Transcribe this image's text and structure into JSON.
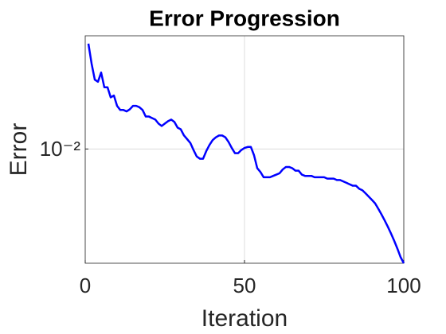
{
  "chart_data": {
    "type": "line",
    "title": "Error Progression",
    "x_label": "Iteration",
    "y_label": "Error",
    "x": [
      1,
      2,
      3,
      4,
      5,
      6,
      7,
      8,
      9,
      10,
      11,
      12,
      13,
      14,
      15,
      16,
      17,
      18,
      19,
      20,
      21,
      22,
      23,
      24,
      25,
      26,
      27,
      28,
      29,
      30,
      31,
      32,
      33,
      34,
      35,
      36,
      37,
      38,
      39,
      40,
      41,
      42,
      43,
      44,
      45,
      46,
      47,
      48,
      49,
      50,
      51,
      52,
      53,
      54,
      55,
      56,
      57,
      58,
      59,
      60,
      61,
      62,
      63,
      64,
      65,
      66,
      67,
      68,
      69,
      70,
      71,
      72,
      73,
      74,
      75,
      76,
      77,
      78,
      79,
      80,
      81,
      82,
      83,
      84,
      85,
      86,
      87,
      88,
      89,
      90,
      91,
      92,
      93,
      94,
      95,
      96,
      97,
      98,
      99,
      100
    ],
    "series": [
      {
        "name": "Error",
        "color": "#0000ff",
        "values": [
          0.0278,
          0.0229,
          0.0196,
          0.0192,
          0.021,
          0.0182,
          0.0182,
          0.0165,
          0.0168,
          0.0152,
          0.0146,
          0.0146,
          0.0144,
          0.0147,
          0.0152,
          0.0152,
          0.015,
          0.0146,
          0.0137,
          0.0137,
          0.0135,
          0.0133,
          0.0128,
          0.0125,
          0.0128,
          0.0131,
          0.0133,
          0.013,
          0.0123,
          0.0121,
          0.0114,
          0.011,
          0.0106,
          0.0099,
          0.0093,
          0.0091,
          0.0091,
          0.0098,
          0.0104,
          0.0109,
          0.0112,
          0.0114,
          0.0114,
          0.0112,
          0.0107,
          0.0101,
          0.0096,
          0.0096,
          0.0099,
          0.0101,
          0.0102,
          0.0102,
          0.0094,
          0.0083,
          0.008,
          0.0076,
          0.0076,
          0.0076,
          0.0077,
          0.0078,
          0.0079,
          0.0082,
          0.0084,
          0.0084,
          0.0083,
          0.0081,
          0.0081,
          0.0078,
          0.0077,
          0.0077,
          0.0077,
          0.0076,
          0.0076,
          0.0076,
          0.0076,
          0.0075,
          0.0075,
          0.0075,
          0.0074,
          0.0074,
          0.0073,
          0.0072,
          0.0071,
          0.007,
          0.007,
          0.0068,
          0.0067,
          0.0065,
          0.0063,
          0.0061,
          0.0059,
          0.0056,
          0.0053,
          0.005,
          0.0047,
          0.0044,
          0.0041,
          0.0038,
          0.0035,
          0.0033
        ]
      }
    ],
    "xlim": [
      0,
      100
    ],
    "xticks": [
      0,
      50,
      100
    ],
    "ylim": [
      0.0033,
      0.03
    ],
    "yticks": [
      {
        "value": 0.01,
        "label": "10⁻²"
      }
    ],
    "y_scale": "log",
    "grid": true
  }
}
